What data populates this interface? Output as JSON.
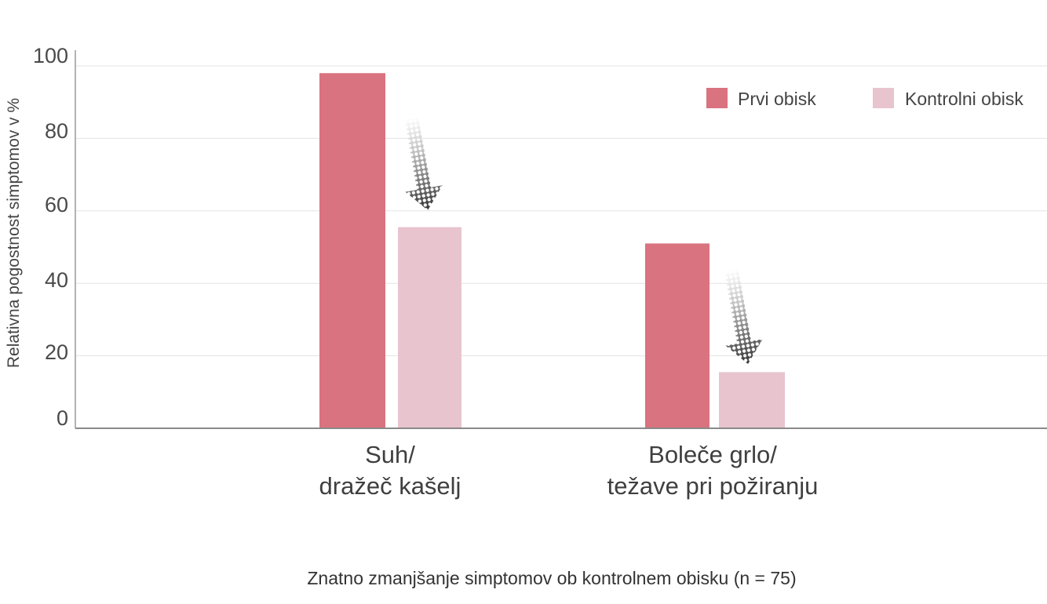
{
  "chart_data": {
    "type": "bar",
    "categories": [
      [
        "Suh/",
        "dražeč kašelj"
      ],
      [
        "Boleče grlo/",
        "težave pri požiranju"
      ]
    ],
    "series": [
      {
        "name": "Prvi obisk",
        "color": "#d9737f",
        "values": [
          98,
          51
        ]
      },
      {
        "name": "Kontrolni obisk",
        "color": "#e8c4ce",
        "values": [
          55.5,
          15.5
        ]
      }
    ],
    "yticks": [
      "0",
      "20",
      "40",
      "60",
      "80",
      "100"
    ],
    "ylim": [
      0,
      100
    ],
    "ylabel": "Relativna pogostnost simptomov v %",
    "caption": "Znatno zmanjšanje simptomov ob kontrolnem obisku (n = 75)",
    "legend_position": "top-right",
    "grid": true,
    "annotation": "decrease-arrow"
  }
}
